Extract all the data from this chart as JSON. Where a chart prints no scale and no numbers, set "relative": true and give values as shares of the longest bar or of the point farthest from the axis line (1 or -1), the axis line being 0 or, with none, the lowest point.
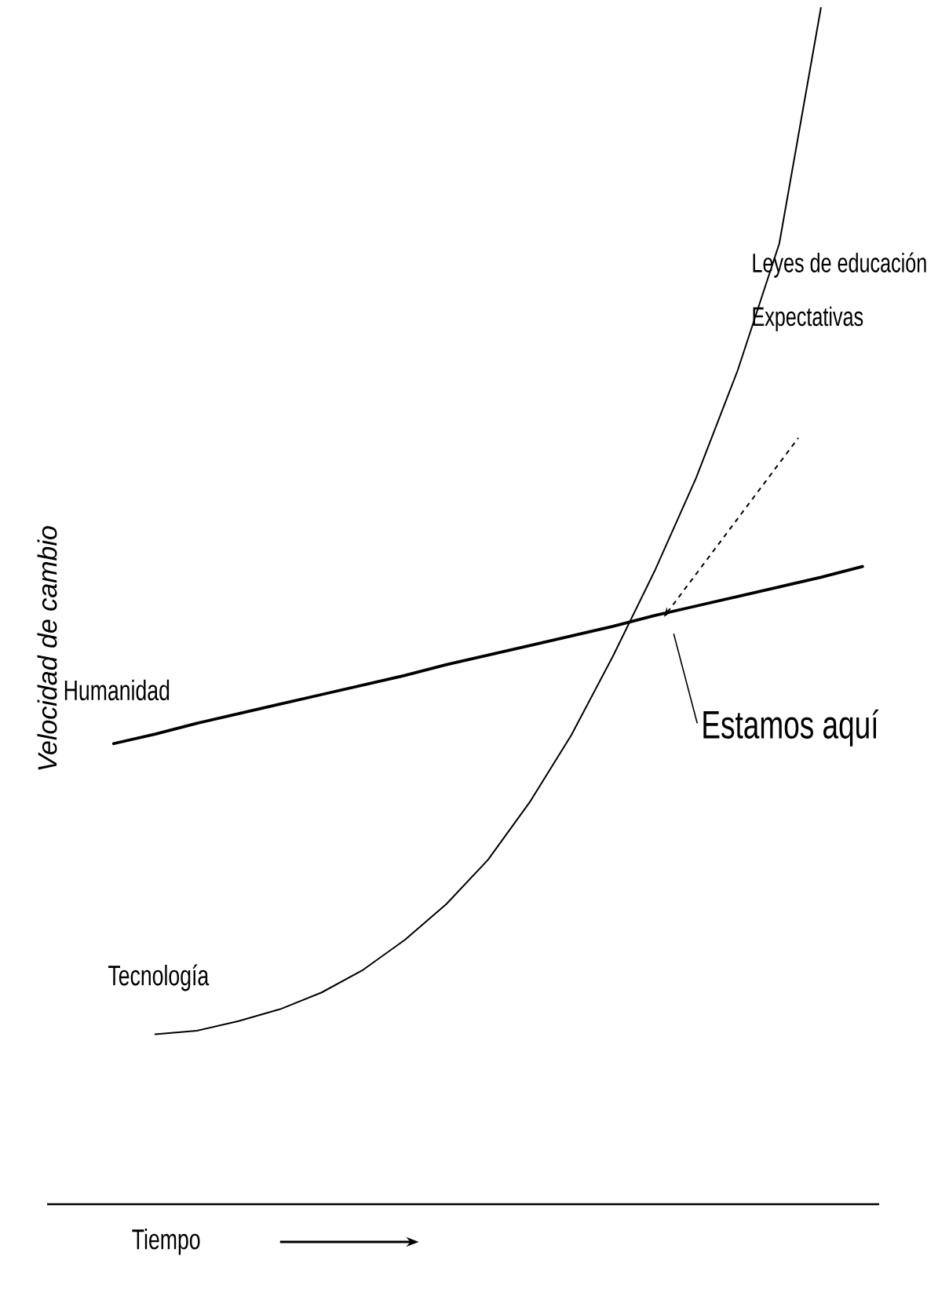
{
  "chart_data": {
    "type": "line",
    "relative": true,
    "xlabel": "Tiempo",
    "ylabel": "Velocidad de cambio",
    "tick_labels": false,
    "categories": [
      null,
      null,
      null,
      null,
      null,
      null,
      null,
      null,
      null,
      null,
      null,
      null,
      null,
      null,
      null,
      null,
      null,
      null,
      null
    ],
    "series": [
      {
        "name": "Humanidad",
        "color": "#000000",
        "values": [
          0.385,
          0.393,
          0.402,
          0.41,
          0.418,
          0.426,
          0.434,
          0.442,
          0.451,
          0.459,
          0.467,
          0.475,
          0.483,
          0.492,
          0.5,
          0.508,
          0.516,
          0.524,
          0.533
        ]
      },
      {
        "name": "Tecnología",
        "color": "#000000",
        "values": [
          null,
          0.142,
          0.145,
          0.153,
          0.163,
          0.177,
          0.196,
          0.221,
          0.251,
          0.288,
          0.336,
          0.392,
          0.458,
          0.529,
          0.607,
          0.697,
          0.803,
          1.0,
          null
        ]
      }
    ],
    "annotations": [
      "Leyes de educación",
      "Expectativas",
      "Estamos aquí"
    ]
  }
}
